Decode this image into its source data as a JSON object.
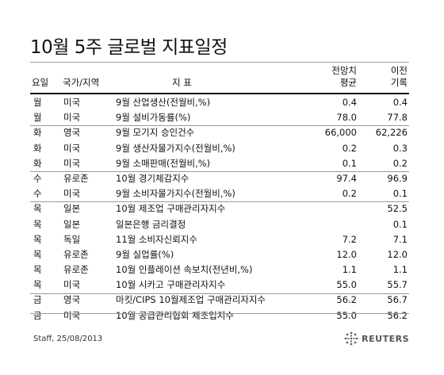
{
  "title": "10월 5주 글로벌 지표일정",
  "header": {
    "day": "요일",
    "country": "국가/지역",
    "indicator": "지 표",
    "forecast_line1": "전망치",
    "forecast_line2": "평균",
    "previous_line1": "이전",
    "previous_line2": "기록"
  },
  "rows": [
    {
      "day": "월",
      "country": "미국",
      "indicator": "9월 산업생산(전월비,%)",
      "forecast": "0.4",
      "previous": "0.4"
    },
    {
      "day": "월",
      "country": "미국",
      "indicator": "9월 설비가동률(%)",
      "forecast": "78.0",
      "previous": "77.8"
    },
    {
      "day": "화",
      "country": "영국",
      "indicator": "9월 모기지 승인건수",
      "forecast": "66,000",
      "previous": "62,226"
    },
    {
      "day": "화",
      "country": "미국",
      "indicator": "9월 생산자물가지수(전월비,%)",
      "forecast": "0.2",
      "previous": "0.3"
    },
    {
      "day": "화",
      "country": "미국",
      "indicator": "9월 소매판매(전월비,%)",
      "forecast": "0.1",
      "previous": "0.2"
    },
    {
      "day": "수",
      "country": "유로존",
      "indicator": "10월 경기체감지수",
      "forecast": "97.4",
      "previous": "96.9"
    },
    {
      "day": "수",
      "country": "미국",
      "indicator": "9월 소비자물가지수(전월비,%)",
      "forecast": "0.2",
      "previous": "0.1"
    },
    {
      "day": "목",
      "country": "일본",
      "indicator": "10월 제조업 구매관리자지수",
      "forecast": "",
      "previous": "52.5"
    },
    {
      "day": "목",
      "country": "일본",
      "indicator": "일본은행 금리결정",
      "forecast": "",
      "previous": "0.1"
    },
    {
      "day": "목",
      "country": "독일",
      "indicator": "11월 소비자신뢰지수",
      "forecast": "7.2",
      "previous": "7.1"
    },
    {
      "day": "목",
      "country": "유로존",
      "indicator": "9월 실업률(%)",
      "forecast": "12.0",
      "previous": "12.0"
    },
    {
      "day": "목",
      "country": "유로존",
      "indicator": "10월 인플레이션 속보치(전년비,%)",
      "forecast": "1.1",
      "previous": "1.1"
    },
    {
      "day": "목",
      "country": "미국",
      "indicator": "10월 시카고 구매관리자지수",
      "forecast": "55.0",
      "previous": "55.7"
    },
    {
      "day": "금",
      "country": "영국",
      "indicator": "마킷/CIPS 10월제조업 구매관리자지수",
      "forecast": "56.2",
      "previous": "56.7"
    },
    {
      "day": "금",
      "country": "미국",
      "indicator": "10월 공급관리협회 제조업지수",
      "forecast": "55.0",
      "previous": "56.2"
    }
  ],
  "footer": {
    "credit": "Staff, 25/08/2013",
    "logo_text": "REUTERS",
    "logo_icon": "reuters-dots-icon",
    "logo_color": "#555555"
  }
}
